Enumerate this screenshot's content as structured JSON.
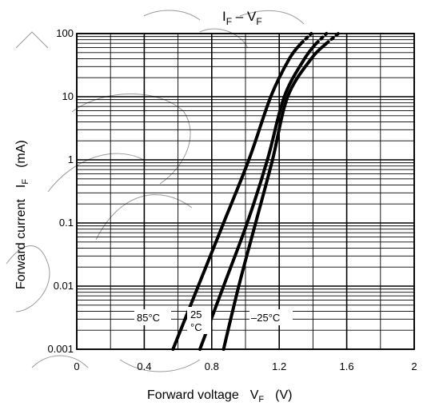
{
  "chart_data": {
    "type": "line",
    "title": {
      "main": "I",
      "main_sub": "F",
      "dash": " – ",
      "second": "V",
      "second_sub": "F"
    },
    "xlabel": {
      "text": "Forward voltage",
      "symbol": "V",
      "sub": "F",
      "unit": "(V)"
    },
    "ylabel": {
      "text": "Forward current",
      "symbol": "I",
      "sub": "F",
      "unit": "(mA)"
    },
    "x_scale": "linear",
    "y_scale": "log",
    "xlim": [
      0,
      2
    ],
    "ylim": [
      0.001,
      100
    ],
    "x_ticks": [
      {
        "value": 0,
        "label": "0"
      },
      {
        "value": 0.4,
        "label": "0.4"
      },
      {
        "value": 0.8,
        "label": "0.8"
      },
      {
        "value": 1.2,
        "label": "1.2"
      },
      {
        "value": 1.6,
        "label": "1.6"
      },
      {
        "value": 2,
        "label": "2"
      }
    ],
    "y_ticks": [
      {
        "value": 0.001,
        "label": "0.001"
      },
      {
        "value": 0.01,
        "label": "0.01"
      },
      {
        "value": 0.1,
        "label": "0.1"
      },
      {
        "value": 1,
        "label": "1"
      },
      {
        "value": 10,
        "label": "10"
      },
      {
        "value": 100,
        "label": "100"
      }
    ],
    "grid": true,
    "series": [
      {
        "name": "85°C",
        "x": [
          0.57,
          0.72,
          0.87,
          1.02,
          1.15,
          1.26,
          1.33
        ],
        "y": [
          0.001,
          0.01,
          0.1,
          1,
          10,
          40,
          70
        ],
        "extension": {
          "x": [
            1.33,
            1.39
          ],
          "y": [
            70,
            100
          ]
        }
      },
      {
        "name": "25 °C",
        "x": [
          0.73,
          0.87,
          1.01,
          1.13,
          1.23,
          1.35,
          1.42
        ],
        "y": [
          0.001,
          0.01,
          0.1,
          1,
          10,
          40,
          70
        ],
        "extension": {
          "x": [
            1.42,
            1.48
          ],
          "y": [
            70,
            100
          ]
        }
      },
      {
        "name": "–25°C",
        "x": [
          0.87,
          0.96,
          1.06,
          1.16,
          1.25,
          1.39,
          1.48
        ],
        "y": [
          0.001,
          0.01,
          0.1,
          1,
          10,
          40,
          70
        ],
        "extension": {
          "x": [
            1.48,
            1.55
          ],
          "y": [
            70,
            100
          ]
        }
      }
    ],
    "annotations": [
      {
        "text": "85°C",
        "x": 0.44,
        "y": 0.0045
      },
      {
        "text": "25",
        "x": 0.72,
        "y": 0.0053
      },
      {
        "text": "°C",
        "x": 0.72,
        "y": 0.0028
      },
      {
        "text": "–25°C",
        "x": 1.0,
        "y": 0.0045
      }
    ]
  }
}
